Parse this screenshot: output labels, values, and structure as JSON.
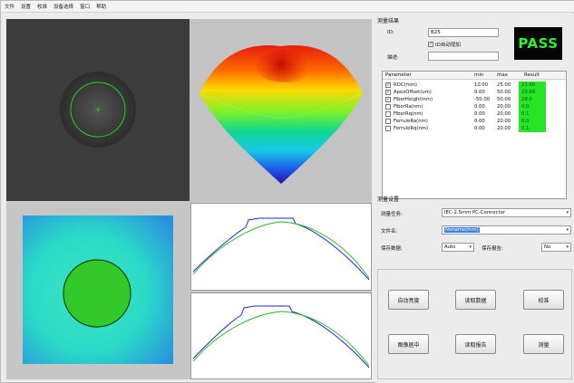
{
  "menubar": {
    "items": [
      "文件",
      "设置",
      "校准",
      "设备选择",
      "窗口",
      "帮助"
    ]
  },
  "result_section": {
    "title": "测量结果",
    "id_label": "ID:",
    "id_value": "B25",
    "auto_increment_label": "ID自动增加",
    "description_label": "描述:",
    "description_value": "",
    "status": "PASS"
  },
  "table": {
    "headers": [
      "Parameter",
      "min",
      "max",
      "Result"
    ],
    "rows": [
      {
        "checked": true,
        "name": "ROC(mm)",
        "min": "10.00",
        "max": "25.00",
        "result": "23.66"
      },
      {
        "checked": true,
        "name": "ApexOffset(um)",
        "min": "0.00",
        "max": "50.00",
        "result": "20.68"
      },
      {
        "checked": true,
        "name": "FiberHeight(nm)",
        "min": "-50.00",
        "max": "50.00",
        "result": "29.0"
      },
      {
        "checked": false,
        "name": "FiberRa(nm)",
        "min": "0.00",
        "max": "20.00",
        "result": "0.0"
      },
      {
        "checked": false,
        "name": "FiberRq(nm)",
        "min": "0.00",
        "max": "20.00",
        "result": "0.1"
      },
      {
        "checked": false,
        "name": "FerruleRa(nm)",
        "min": "0.00",
        "max": "20.00",
        "result": "0.0"
      },
      {
        "checked": false,
        "name": "FerruleRq(nm)",
        "min": "0.00",
        "max": "20.00",
        "result": "0.1"
      }
    ]
  },
  "settings": {
    "title": "测量设置",
    "task_label": "测量任务:",
    "task_value": "IEC-2.5mm PC-Connector",
    "filename_label": "文件名:",
    "filename_value": "Noname(mm)",
    "save_data_label": "保存数据:",
    "save_data_value": "Auto",
    "save_report_label": "保存报告:",
    "save_report_value": "No"
  },
  "buttons": {
    "auto_focus": "自动亮度",
    "load_data": "读取数据",
    "calibrate": "校准",
    "center_image": "图像居中",
    "save_report": "读取报告",
    "measure": "测量"
  }
}
